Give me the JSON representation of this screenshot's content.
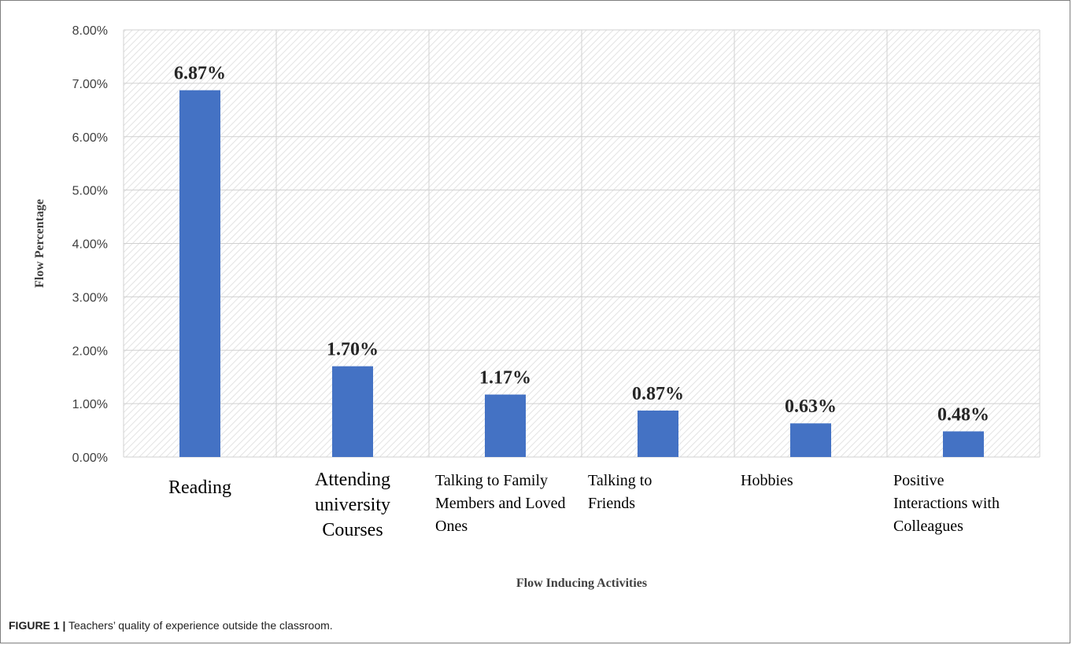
{
  "caption": {
    "label": "FIGURE 1 |",
    "text": "Teachers’ quality of experience outside the classroom."
  },
  "chart_data": {
    "type": "bar",
    "xlabel": "Flow Inducing Activities",
    "ylabel": "Flow Percentage",
    "ylim": [
      0,
      8
    ],
    "yticks": [
      "0.00%",
      "1.00%",
      "2.00%",
      "3.00%",
      "4.00%",
      "5.00%",
      "6.00%",
      "7.00%",
      "8.00%"
    ],
    "grid": true,
    "categories": [
      "Reading",
      "Attending university Courses",
      "Talking to Family Members and Loved Ones",
      "Talking to Friends",
      "Hobbies",
      "Positive Interactions with Colleagues"
    ],
    "category_lines": [
      [
        "Reading"
      ],
      [
        "Attending",
        "university",
        "Courses"
      ],
      [
        "Talking to Family",
        "Members and Loved",
        "Ones"
      ],
      [
        "Talking to",
        "Friends"
      ],
      [
        "Hobbies"
      ],
      [
        "Positive",
        "Interactions with",
        "Colleagues"
      ]
    ],
    "values": [
      6.87,
      1.7,
      1.17,
      0.87,
      0.63,
      0.48
    ],
    "data_labels": [
      "6.87%",
      "1.70%",
      "1.17%",
      "0.87%",
      "0.63%",
      "0.48%"
    ],
    "bar_color": "#4472C4"
  }
}
